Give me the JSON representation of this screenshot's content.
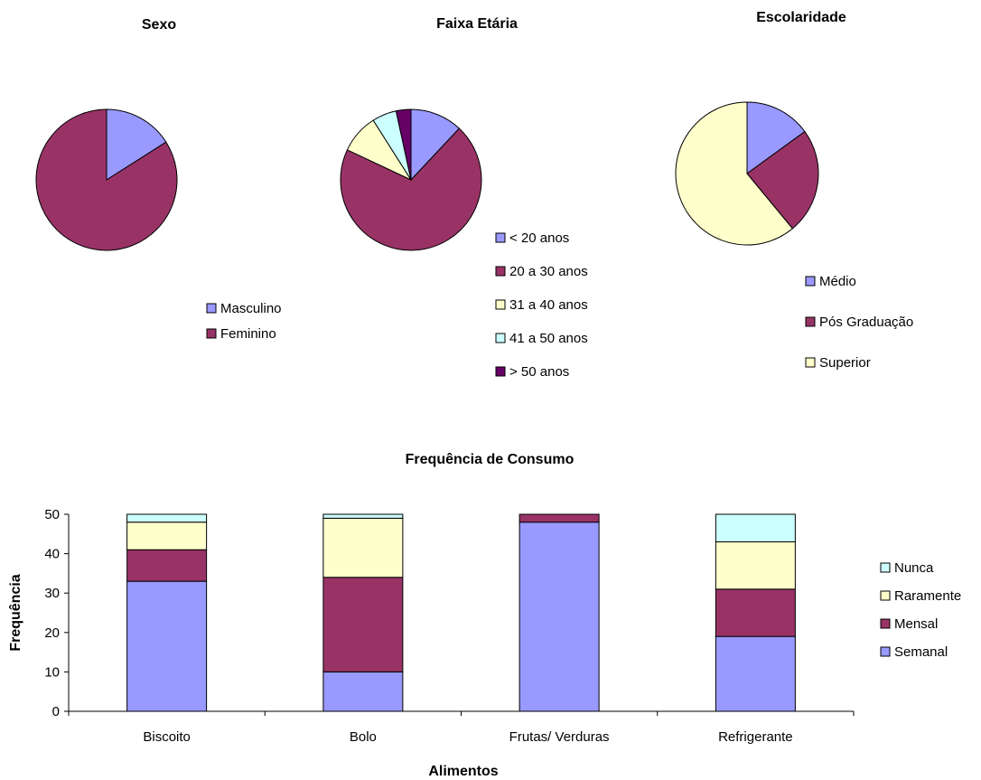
{
  "chart_data": [
    {
      "type": "pie",
      "title": "Sexo",
      "slices": [
        {
          "label": "Masculino",
          "value": 8,
          "color": "#9999ff"
        },
        {
          "label": "Feminino",
          "value": 42,
          "color": "#993366"
        }
      ],
      "legend_position": "bottom-right"
    },
    {
      "type": "pie",
      "title": "Faixa Etária",
      "slices": [
        {
          "label": "< 20 anos",
          "value": 6,
          "color": "#9999ff"
        },
        {
          "label": "20 a 30 anos",
          "value": 35,
          "color": "#993366"
        },
        {
          "label": "31 a 40 anos",
          "value": 4.5,
          "color": "#ffffcc"
        },
        {
          "label": "41 a 50 anos",
          "value": 2.8,
          "color": "#ccffff"
        },
        {
          "label": "> 50 anos",
          "value": 1.7,
          "color": "#660066"
        }
      ],
      "legend_position": "bottom-right"
    },
    {
      "type": "pie",
      "title": "Escolaridade",
      "slices": [
        {
          "label": "Médio",
          "value": 7.5,
          "color": "#9999ff"
        },
        {
          "label": "Pós Graduação",
          "value": 12,
          "color": "#993366"
        },
        {
          "label": "Superior",
          "value": 30.5,
          "color": "#ffffcc"
        }
      ],
      "legend_position": "bottom"
    },
    {
      "type": "bar",
      "stacked": true,
      "title": "Frequência de Consumo",
      "xlabel": "Alimentos",
      "ylabel": "Frequência",
      "ylim": [
        0,
        50
      ],
      "yticks": [
        0,
        10,
        20,
        30,
        40,
        50
      ],
      "grid": false,
      "legend_position": "right",
      "categories": [
        "Biscoito",
        "Bolo",
        "Frutas/ Verduras",
        "Refrigerante"
      ],
      "series": [
        {
          "name": "Semanal",
          "values": [
            33,
            10,
            48,
            19
          ],
          "color": "#9999ff"
        },
        {
          "name": "Mensal",
          "values": [
            8,
            24,
            2,
            12
          ],
          "color": "#993366"
        },
        {
          "name": "Raramente",
          "values": [
            7,
            15,
            0,
            12
          ],
          "color": "#ffffcc"
        },
        {
          "name": "Nunca",
          "values": [
            2,
            1,
            0,
            7
          ],
          "color": "#ccffff"
        }
      ]
    }
  ]
}
